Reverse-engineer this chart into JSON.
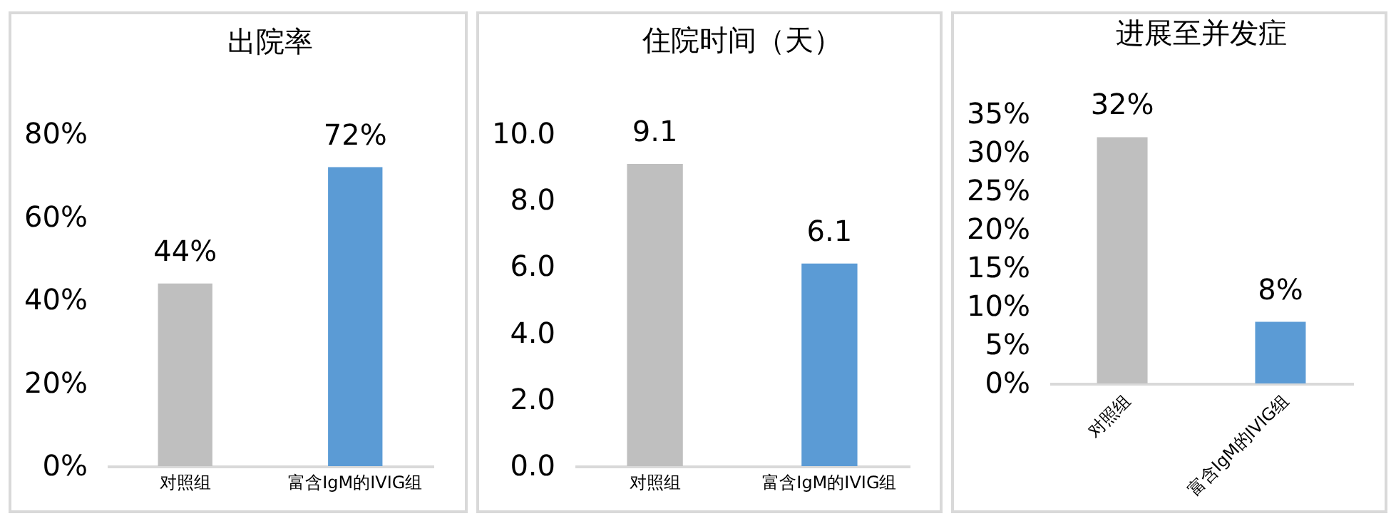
{
  "chart_data": [
    {
      "type": "bar",
      "title": "出院率",
      "categories": [
        "对照组",
        "富含IgM的IVIG组"
      ],
      "values": [
        44,
        72
      ],
      "colors": [
        "#bfbfbf",
        "#5b9bd5"
      ],
      "value_labels": [
        "44%",
        "72%"
      ],
      "ylim": [
        0,
        80
      ],
      "yticks": [
        {
          "value": 0,
          "label": "0%"
        },
        {
          "value": 20,
          "label": "20%"
        },
        {
          "value": 40,
          "label": "40%"
        },
        {
          "value": 60,
          "label": "60%"
        },
        {
          "value": 80,
          "label": "80%"
        }
      ]
    },
    {
      "type": "bar",
      "title": "住院时间（天）",
      "categories": [
        "对照组",
        "富含IgM的IVIG组"
      ],
      "values": [
        9.1,
        6.1
      ],
      "colors": [
        "#bfbfbf",
        "#5b9bd5"
      ],
      "data_labels": true,
      "ylim": [
        0,
        10
      ],
      "yticks": [
        {
          "value": 0,
          "label": "0.0"
        },
        {
          "value": 2,
          "label": "2.0"
        },
        {
          "value": 4,
          "label": "4.0"
        },
        {
          "value": 6,
          "label": "6.0"
        },
        {
          "value": 8,
          "label": "8.0"
        },
        {
          "value": 10,
          "label": "10.0"
        }
      ]
    },
    {
      "type": "bar",
      "title": "进展至并发症",
      "categories": [
        "对照组",
        "富含IgM的IVIG组"
      ],
      "values": [
        32,
        8
      ],
      "colors": [
        "#bfbfbf",
        "#5b9bd5"
      ],
      "value_labels": [
        "32%",
        "8%"
      ],
      "ylim": [
        0,
        35
      ],
      "yticks": [
        {
          "value": 0,
          "label": "0%"
        },
        {
          "value": 5,
          "label": "5%"
        },
        {
          "value": 10,
          "label": "10%"
        },
        {
          "value": 15,
          "label": "15%"
        },
        {
          "value": 20,
          "label": "20%"
        },
        {
          "value": 25,
          "label": "25%"
        },
        {
          "value": 30,
          "label": "30%"
        },
        {
          "value": 35,
          "label": "35%"
        }
      ]
    }
  ]
}
